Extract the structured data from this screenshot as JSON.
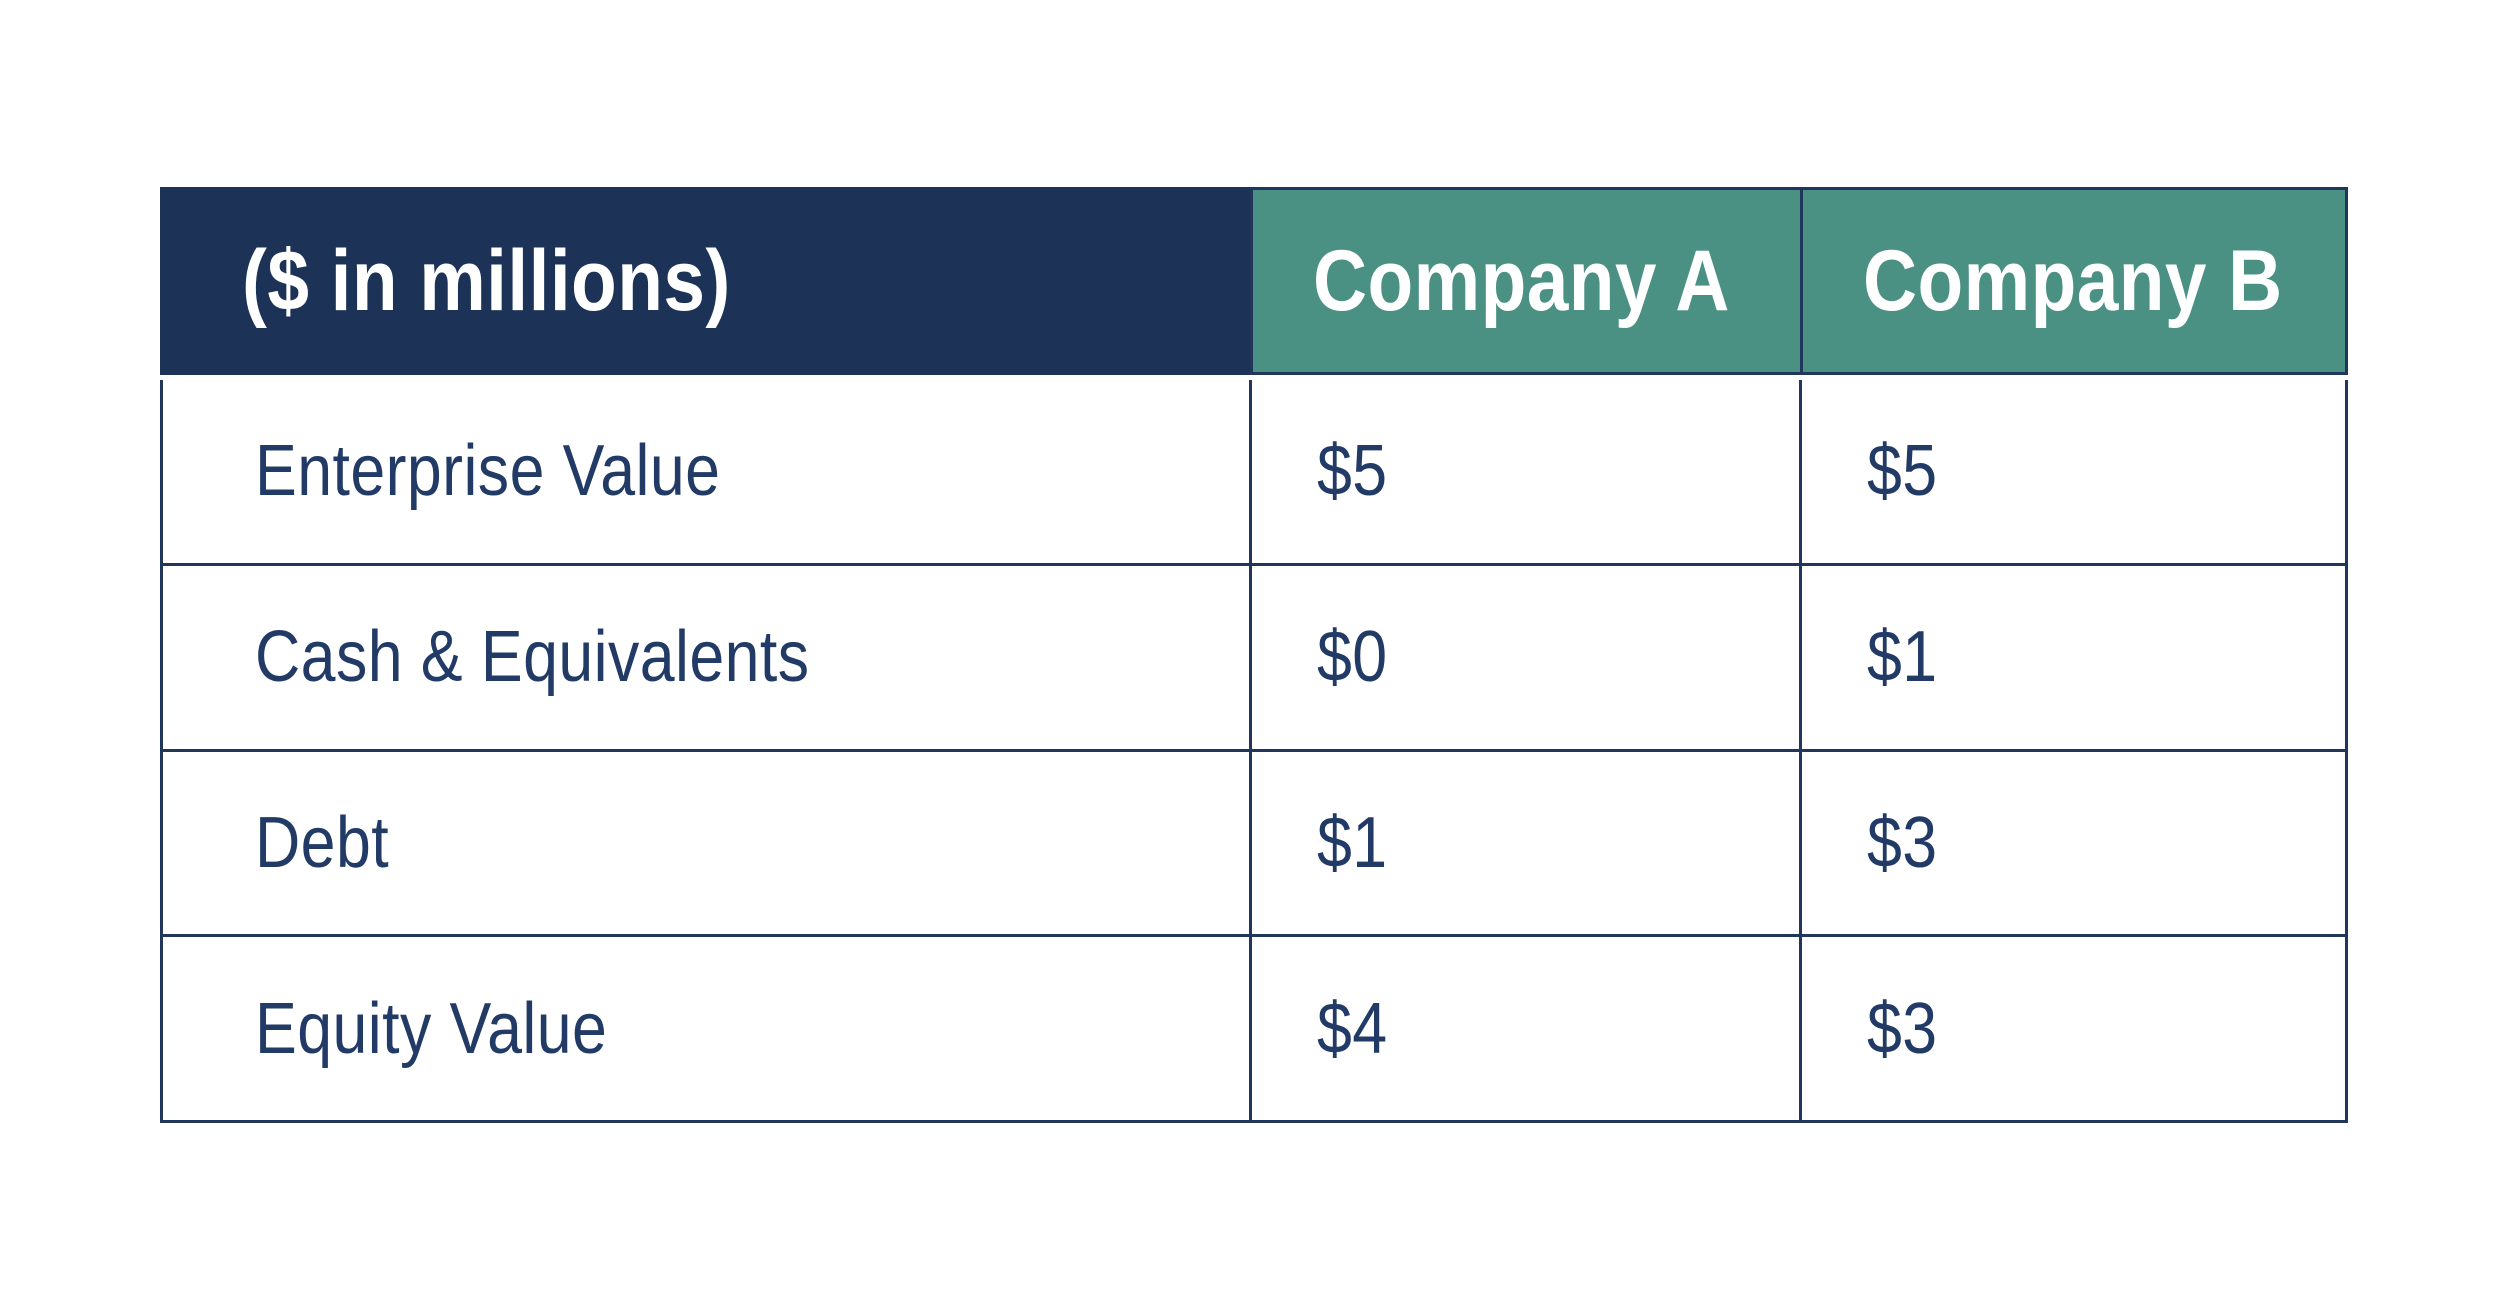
{
  "table": {
    "header": {
      "label": "($ in millions)",
      "columns": [
        "Company A",
        "Company B"
      ]
    },
    "rows": [
      {
        "label": "Enterprise Value",
        "values": [
          "$5",
          "$5"
        ]
      },
      {
        "label": "Cash & Equivalents",
        "values": [
          "$0",
          "$1"
        ]
      },
      {
        "label": "Debt",
        "values": [
          "$1",
          "$3"
        ]
      },
      {
        "label": "Equity Value",
        "values": [
          "$4",
          "$3"
        ]
      }
    ],
    "colors": {
      "header_navy": "#1c3357",
      "header_teal": "#4a9184",
      "grid_border": "#20365a",
      "body_text": "#223a66",
      "header_text": "#ffffff",
      "background": "#ffffff"
    }
  },
  "chart_data": {
    "type": "table",
    "title": "($ in millions)",
    "columns": [
      "($ in millions)",
      "Company A",
      "Company B"
    ],
    "rows": [
      [
        "Enterprise Value",
        "$5",
        "$5"
      ],
      [
        "Cash & Equivalents",
        "$0",
        "$1"
      ],
      [
        "Debt",
        "$1",
        "$3"
      ],
      [
        "Equity Value",
        "$4",
        "$3"
      ]
    ],
    "series": [
      {
        "name": "Company A",
        "values": [
          5,
          0,
          1,
          4
        ]
      },
      {
        "name": "Company B",
        "values": [
          5,
          1,
          3,
          3
        ]
      }
    ],
    "categories": [
      "Enterprise Value",
      "Cash & Equivalents",
      "Debt",
      "Equity Value"
    ],
    "units": "$ millions"
  }
}
